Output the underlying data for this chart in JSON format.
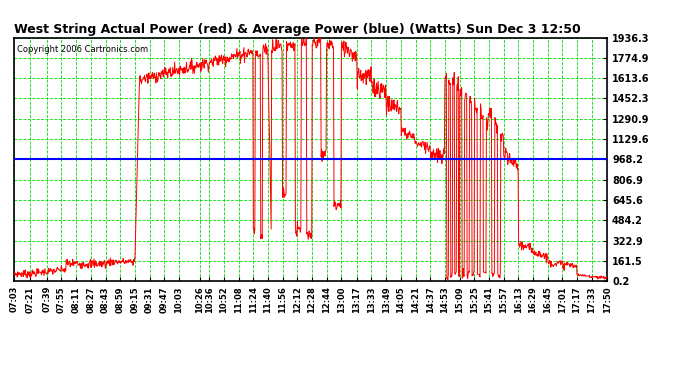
{
  "title": "West String Actual Power (red) & Average Power (blue) (Watts) Sun Dec 3 12:50",
  "copyright": "Copyright 2006 Cartronics.com",
  "y_ticks": [
    0.2,
    161.5,
    322.9,
    484.2,
    645.6,
    806.9,
    968.2,
    1129.6,
    1290.9,
    1452.3,
    1613.6,
    1774.9,
    1936.3
  ],
  "ymin": 0.2,
  "ymax": 1936.3,
  "avg_power": 968.2,
  "grid_color": "#00dd00",
  "x_labels": [
    "07:03",
    "07:21",
    "07:39",
    "07:55",
    "08:11",
    "08:27",
    "08:43",
    "08:59",
    "09:15",
    "09:31",
    "09:47",
    "10:03",
    "10:26",
    "10:36",
    "10:52",
    "11:08",
    "11:24",
    "11:40",
    "11:56",
    "12:12",
    "12:28",
    "12:44",
    "13:00",
    "13:17",
    "13:33",
    "13:49",
    "14:05",
    "14:21",
    "14:37",
    "14:53",
    "15:09",
    "15:25",
    "15:41",
    "15:57",
    "16:13",
    "16:29",
    "16:45",
    "17:01",
    "17:17",
    "17:33",
    "17:50"
  ]
}
